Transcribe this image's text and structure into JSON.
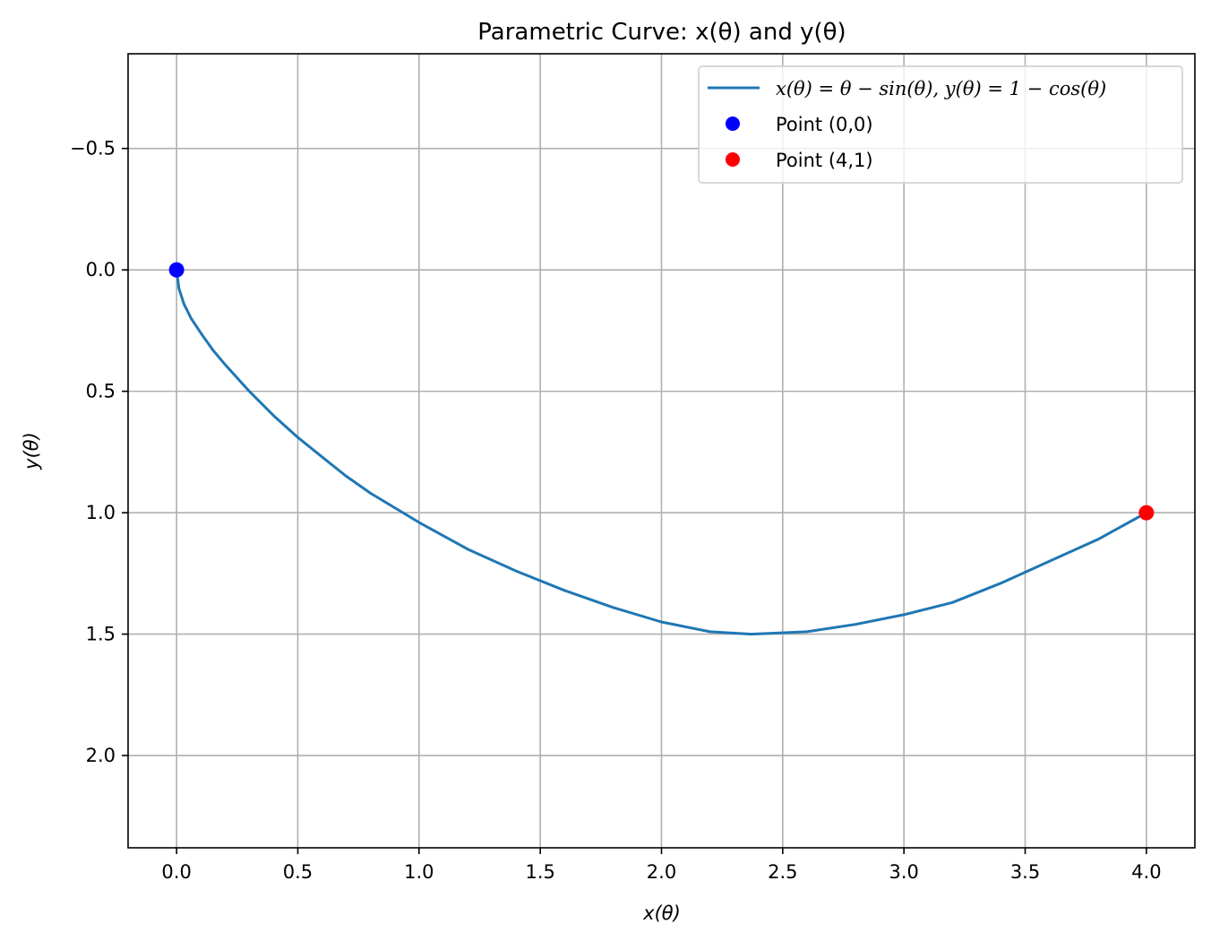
{
  "chart_data": {
    "type": "line",
    "title": "Parametric Curve: x(θ) and y(θ)",
    "xlabel": "x(θ)",
    "ylabel": "y(θ)",
    "xlim": [
      -0.2,
      4.2
    ],
    "ylim": [
      2.38,
      -0.89
    ],
    "y_inverted": true,
    "xticks": [
      0.0,
      0.5,
      1.0,
      1.5,
      2.0,
      2.5,
      3.0,
      3.5,
      4.0
    ],
    "xtick_labels": [
      "0.0",
      "0.5",
      "1.0",
      "1.5",
      "2.0",
      "2.5",
      "3.0",
      "3.5",
      "4.0"
    ],
    "yticks": [
      -0.5,
      0.0,
      0.5,
      1.0,
      1.5,
      2.0
    ],
    "ytick_labels": [
      "−0.5",
      "0.0",
      "0.5",
      "1.0",
      "1.5",
      "2.0"
    ],
    "grid": true,
    "legend_position": "top-right",
    "series": [
      {
        "name": "x(θ) = θ − sin(θ), y(θ) = 1 − cos(θ)",
        "kind": "line",
        "color": "#1f77b4",
        "points": [
          [
            0.0,
            0.0
          ],
          [
            0.01,
            0.077
          ],
          [
            0.03,
            0.14
          ],
          [
            0.06,
            0.2
          ],
          [
            0.1,
            0.26
          ],
          [
            0.15,
            0.33
          ],
          [
            0.2,
            0.39
          ],
          [
            0.3,
            0.5
          ],
          [
            0.4,
            0.6
          ],
          [
            0.5,
            0.69
          ],
          [
            0.6,
            0.77
          ],
          [
            0.7,
            0.85
          ],
          [
            0.8,
            0.92
          ],
          [
            1.0,
            1.04
          ],
          [
            1.2,
            1.15
          ],
          [
            1.4,
            1.24
          ],
          [
            1.6,
            1.32
          ],
          [
            1.8,
            1.39
          ],
          [
            2.0,
            1.45
          ],
          [
            2.2,
            1.49
          ],
          [
            2.37,
            1.5
          ],
          [
            2.6,
            1.49
          ],
          [
            2.8,
            1.46
          ],
          [
            3.0,
            1.42
          ],
          [
            3.2,
            1.37
          ],
          [
            3.4,
            1.29
          ],
          [
            3.6,
            1.2
          ],
          [
            3.8,
            1.11
          ],
          [
            4.0,
            1.0
          ]
        ]
      },
      {
        "name": "Point (0,0)",
        "kind": "marker",
        "color": "#0000ff",
        "points": [
          [
            0,
            0
          ]
        ]
      },
      {
        "name": "Point (4,1)",
        "kind": "marker",
        "color": "#ff0000",
        "points": [
          [
            4,
            1
          ]
        ]
      }
    ]
  },
  "legend": {
    "entry_curve_math": "x(θ) = θ − sin(θ), y(θ) = 1 − cos(θ)",
    "entry_point_a": "Point (0,0)",
    "entry_point_b": "Point (4,1)"
  },
  "colors": {
    "curve": "#1f77b4",
    "point_a": "#0000ff",
    "point_b": "#ff0000",
    "grid": "#b0b0b0",
    "frame": "#000000"
  }
}
